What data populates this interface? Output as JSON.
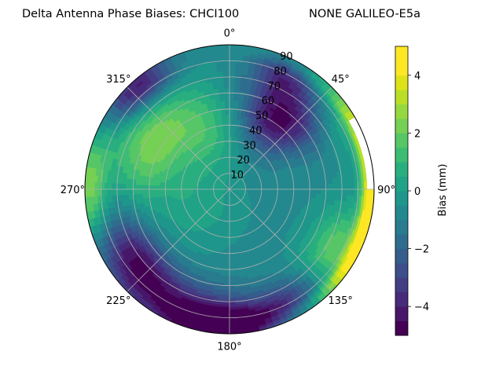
{
  "chart_data": {
    "type": "polar contour",
    "title_left": "Delta Antenna Phase Biases: CHCI100",
    "title_right": "NONE GALILEO-E5a",
    "azimuth_labels": [
      {
        "angle": 0,
        "text": "0°"
      },
      {
        "angle": 45,
        "text": "45°"
      },
      {
        "angle": 90,
        "text": "90°"
      },
      {
        "angle": 135,
        "text": "135°"
      },
      {
        "angle": 180,
        "text": "180°"
      },
      {
        "angle": 225,
        "text": "225°"
      },
      {
        "angle": 270,
        "text": "270°"
      },
      {
        "angle": 315,
        "text": "315°"
      }
    ],
    "radial_ticks": [
      10,
      20,
      30,
      40,
      50,
      60,
      70,
      80,
      90
    ],
    "radial_range": [
      0,
      90
    ],
    "grid": true,
    "colorbar": {
      "label": "Bias (mm)",
      "range": [
        -5,
        5
      ],
      "ticks": [
        {
          "value": 4,
          "text": "4"
        },
        {
          "value": 2,
          "text": "2"
        },
        {
          "value": 0,
          "text": "0"
        },
        {
          "value": -2,
          "text": "−2"
        },
        {
          "value": -4,
          "text": "−4"
        }
      ],
      "levels": [
        -5,
        -4.5,
        -4,
        -3.5,
        -3,
        -2.5,
        -2,
        -1.5,
        -1,
        -0.5,
        0,
        0.5,
        1,
        1.5,
        2,
        2.5,
        3,
        3.5,
        4,
        4.5,
        5
      ],
      "colors": [
        "#440154",
        "#481769",
        "#472a7a",
        "#433d84",
        "#3d4e8a",
        "#355e8d",
        "#2e6d8e",
        "#297b8e",
        "#23898e",
        "#1f968b",
        "#20a386",
        "#29af7f",
        "#3dbc74",
        "#56c667",
        "#75d054",
        "#95d840",
        "#bade28",
        "#dde318",
        "#fde725",
        "#fde725"
      ]
    },
    "features": [
      {
        "az": 35,
        "r": 55,
        "sa": 18,
        "sr": 16,
        "amp": -4.2
      },
      {
        "az": 25,
        "r": 78,
        "sa": 10,
        "sr": 8,
        "amp": -2.0
      },
      {
        "az": 318,
        "r": 85,
        "sa": 12,
        "sr": 9,
        "amp": -4.0
      },
      {
        "az": 300,
        "r": 55,
        "sa": 25,
        "sr": 18,
        "amp": 2.8
      },
      {
        "az": 270,
        "r": 88,
        "sa": 15,
        "sr": 8,
        "amp": 3.0
      },
      {
        "az": 340,
        "r": 40,
        "sa": 20,
        "sr": 18,
        "amp": 1.5
      },
      {
        "az": 205,
        "r": 80,
        "sa": 30,
        "sr": 14,
        "amp": -3.5
      },
      {
        "az": 180,
        "r": 85,
        "sa": 15,
        "sr": 8,
        "amp": -4.0
      },
      {
        "az": 235,
        "r": 70,
        "sa": 15,
        "sr": 12,
        "amp": -2.2
      },
      {
        "az": 120,
        "r": 75,
        "sa": 15,
        "sr": 12,
        "amp": 2.5
      },
      {
        "az": 95,
        "r": 88,
        "sa": 35,
        "sr": 4,
        "amp": 5.5
      },
      {
        "az": 150,
        "r": 80,
        "sa": 12,
        "sr": 10,
        "amp": -2.0
      },
      {
        "az": 60,
        "r": 80,
        "sa": 12,
        "sr": 10,
        "amp": 1.2
      },
      {
        "az": 240,
        "r": 25,
        "sa": 30,
        "sr": 20,
        "amp": 0.8
      }
    ],
    "baseline": -0.6,
    "blank_wedge_az": [
      60,
      90
    ],
    "blank_wedge_r_min": 86
  }
}
